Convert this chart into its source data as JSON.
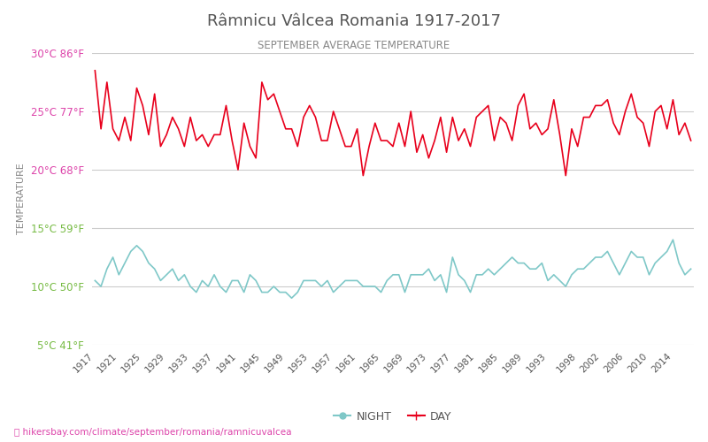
{
  "title": "Râmnicu Vâlcea Romania 1917-2017",
  "subtitle": "SEPTEMBER AVERAGE TEMPERATURE",
  "ylabel": "TEMPERATURE",
  "xlabel_url": "hikersbay.com/climate/september/romania/ramnicuvalcea",
  "ylim": [
    5,
    30
  ],
  "yticks_c": [
    5,
    10,
    15,
    20,
    25,
    30
  ],
  "yticks_f": [
    41,
    50,
    59,
    68,
    77,
    86
  ],
  "years": [
    1917,
    1918,
    1919,
    1920,
    1921,
    1922,
    1923,
    1924,
    1925,
    1926,
    1927,
    1928,
    1929,
    1930,
    1931,
    1932,
    1933,
    1934,
    1935,
    1936,
    1937,
    1938,
    1939,
    1940,
    1941,
    1942,
    1943,
    1944,
    1945,
    1946,
    1947,
    1948,
    1949,
    1950,
    1951,
    1952,
    1953,
    1954,
    1955,
    1956,
    1957,
    1958,
    1959,
    1960,
    1961,
    1962,
    1963,
    1964,
    1965,
    1966,
    1967,
    1968,
    1969,
    1970,
    1971,
    1972,
    1973,
    1974,
    1975,
    1976,
    1977,
    1978,
    1979,
    1980,
    1981,
    1982,
    1983,
    1984,
    1985,
    1986,
    1987,
    1988,
    1989,
    1990,
    1991,
    1992,
    1993,
    1994,
    1995,
    1996,
    1997,
    1998,
    1999,
    2000,
    2001,
    2002,
    2003,
    2004,
    2005,
    2006,
    2007,
    2008,
    2009,
    2010,
    2011,
    2012,
    2013,
    2014,
    2015,
    2016,
    2017
  ],
  "day_temps": [
    28.5,
    23.5,
    27.5,
    23.5,
    22.5,
    24.5,
    22.5,
    27.0,
    25.5,
    23.0,
    26.5,
    22.0,
    23.0,
    24.5,
    23.5,
    22.0,
    24.5,
    22.5,
    23.0,
    22.0,
    23.0,
    23.0,
    25.5,
    22.5,
    20.0,
    24.0,
    22.0,
    21.0,
    27.5,
    26.0,
    26.5,
    25.0,
    23.5,
    23.5,
    22.0,
    24.5,
    25.5,
    24.5,
    22.5,
    22.5,
    25.0,
    23.5,
    22.0,
    22.0,
    23.5,
    19.5,
    22.0,
    24.0,
    22.5,
    22.5,
    22.0,
    24.0,
    22.0,
    25.0,
    21.5,
    23.0,
    21.0,
    22.5,
    24.5,
    21.5,
    24.5,
    22.5,
    23.5,
    22.0,
    24.5,
    25.0,
    25.5,
    22.5,
    24.5,
    24.0,
    22.5,
    25.5,
    26.5,
    23.5,
    24.0,
    23.0,
    23.5,
    26.0,
    23.0,
    19.5,
    23.5,
    22.0,
    24.5,
    24.5,
    25.5,
    25.5,
    26.0,
    24.0,
    23.0,
    25.0,
    26.5,
    24.5,
    24.0,
    22.0,
    25.0,
    25.5,
    23.5,
    26.0,
    23.0,
    24.0,
    22.5
  ],
  "night_temps": [
    10.5,
    10.0,
    11.5,
    12.5,
    11.0,
    12.0,
    13.0,
    13.5,
    13.0,
    12.0,
    11.5,
    10.5,
    11.0,
    11.5,
    10.5,
    11.0,
    10.0,
    9.5,
    10.5,
    10.0,
    11.0,
    10.0,
    9.5,
    10.5,
    10.5,
    9.5,
    11.0,
    10.5,
    9.5,
    9.5,
    10.0,
    9.5,
    9.5,
    9.0,
    9.5,
    10.5,
    10.5,
    10.5,
    10.0,
    10.5,
    9.5,
    10.0,
    10.5,
    10.5,
    10.5,
    10.0,
    10.0,
    10.0,
    9.5,
    10.5,
    11.0,
    11.0,
    9.5,
    11.0,
    11.0,
    11.0,
    11.5,
    10.5,
    11.0,
    9.5,
    12.5,
    11.0,
    10.5,
    9.5,
    11.0,
    11.0,
    11.5,
    11.0,
    11.5,
    12.0,
    12.5,
    12.0,
    12.0,
    11.5,
    11.5,
    12.0,
    10.5,
    11.0,
    10.5,
    10.0,
    11.0,
    11.5,
    11.5,
    12.0,
    12.5,
    12.5,
    13.0,
    12.0,
    11.0,
    12.0,
    13.0,
    12.5,
    12.5,
    11.0,
    12.0,
    12.5,
    13.0,
    14.0,
    12.0,
    11.0,
    11.5
  ],
  "day_color": "#e8001c",
  "night_color": "#7fc8c8",
  "title_color": "#555555",
  "subtitle_color": "#888888",
  "ylabel_color": "#888888",
  "ytick_colors": [
    "#77bb44",
    "#77bb44",
    "#77bb44",
    "#dd44aa",
    "#dd44aa",
    "#dd44aa"
  ],
  "background_color": "#ffffff",
  "grid_color": "#cccccc",
  "url_color": "#dd44aa",
  "xtick_years": [
    1917,
    1921,
    1925,
    1929,
    1933,
    1937,
    1941,
    1945,
    1949,
    1953,
    1957,
    1961,
    1965,
    1969,
    1973,
    1977,
    1981,
    1985,
    1989,
    1993,
    1998,
    2002,
    2006,
    2010,
    2014
  ]
}
